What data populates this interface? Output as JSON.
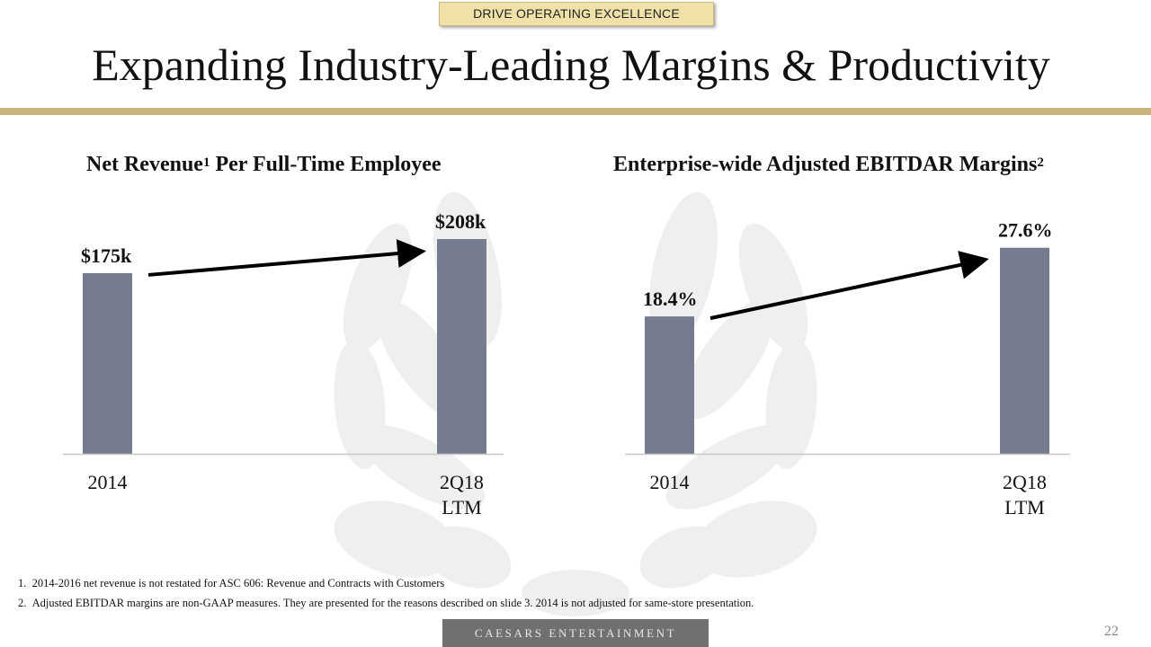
{
  "header": {
    "section_tag": "DRIVE OPERATING EXCELLENCE",
    "title": "Expanding Industry-Leading Margins & Productivity"
  },
  "colors": {
    "bar": "#767c90",
    "gold": "#c8b47a",
    "tag_bg": "#efe1a8",
    "footer_bg": "#707070"
  },
  "chart_data": [
    {
      "type": "bar",
      "title": "Net Revenue",
      "title_sup": "1",
      "title_rest": " Per Full-Time Employee",
      "categories": [
        [
          "2014"
        ],
        [
          "2Q18",
          "LTM"
        ]
      ],
      "values": [
        175,
        208
      ],
      "value_labels": [
        "$175k",
        "$208k"
      ],
      "units": "thousands USD",
      "ylim": [
        0,
        235
      ],
      "trend_arrow": true
    },
    {
      "type": "bar",
      "title": "Enterprise-wide Adjusted EBITDAR Margins",
      "title_sup": "2",
      "title_rest": "",
      "categories": [
        [
          "2014"
        ],
        [
          "2Q18",
          "LTM"
        ]
      ],
      "values": [
        18.4,
        27.6
      ],
      "value_labels": [
        "18.4%",
        "27.6%"
      ],
      "units": "percent",
      "ylim": [
        0,
        32.5
      ],
      "trend_arrow": true
    }
  ],
  "footnotes": [
    "1.  2014-2016 net revenue is not restated for ASC 606: Revenue and Contracts with Customers",
    "2.  Adjusted EBITDAR margins are non-GAAP measures. They are presented for the reasons described on slide 3. 2014 is not adjusted for same-store presentation."
  ],
  "footer": {
    "brand": "CAESARS ENTERTAINMENT",
    "page_number": "22"
  },
  "watermark_icon": "laurel-wreath-icon"
}
